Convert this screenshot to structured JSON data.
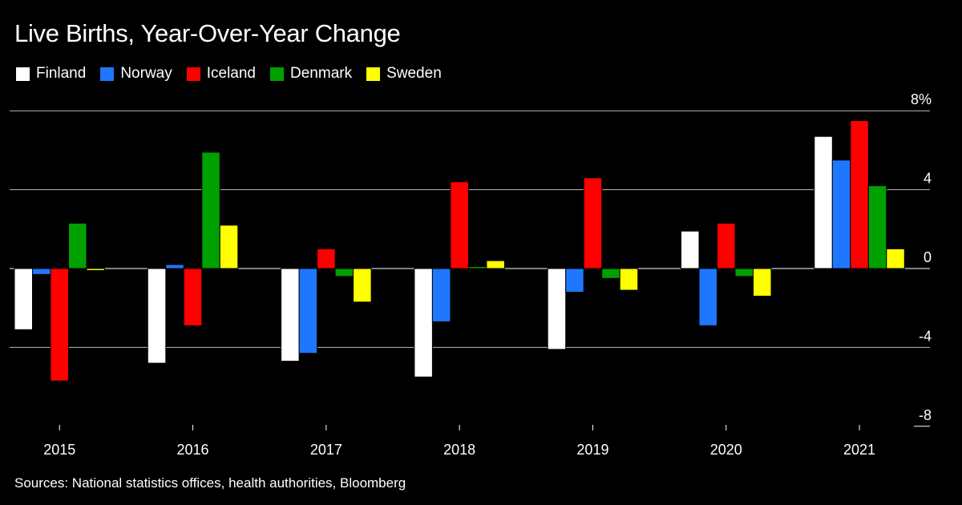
{
  "chart_data": {
    "type": "bar",
    "title": "Live Births, Year-Over-Year Change",
    "categories": [
      "2015",
      "2016",
      "2017",
      "2018",
      "2019",
      "2020",
      "2021"
    ],
    "series": [
      {
        "name": "Finland",
        "color": "#ffffff",
        "values": [
          -3.1,
          -4.8,
          -4.7,
          -5.5,
          -4.1,
          1.9,
          6.7
        ]
      },
      {
        "name": "Norway",
        "color": "#1f77ff",
        "values": [
          -0.3,
          0.2,
          -4.3,
          -2.7,
          -1.2,
          -2.9,
          5.5
        ]
      },
      {
        "name": "Iceland",
        "color": "#ff0000",
        "values": [
          -5.7,
          -2.9,
          1.0,
          4.4,
          4.6,
          2.3,
          7.5
        ]
      },
      {
        "name": "Denmark",
        "color": "#00a000",
        "values": [
          2.3,
          5.9,
          -0.4,
          0.1,
          -0.5,
          -0.4,
          4.2
        ]
      },
      {
        "name": "Sweden",
        "color": "#ffff00",
        "values": [
          -0.1,
          2.2,
          -1.7,
          0.4,
          -1.1,
          -1.4,
          1.0
        ]
      }
    ],
    "yticks": [
      8,
      4,
      0,
      -4,
      -8
    ],
    "ytick_labels": [
      "8%",
      "4",
      "0",
      "-4",
      "-8"
    ],
    "ylim": [
      -8,
      8
    ],
    "grid": true,
    "legend_position": "top-left",
    "source": "Sources: National statistics offices, health authorities, Bloomberg"
  }
}
